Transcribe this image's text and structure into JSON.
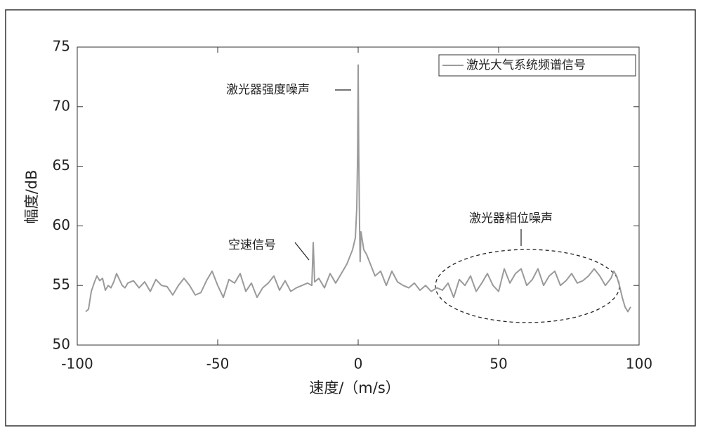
{
  "chart_data": {
    "type": "line",
    "xlabel": "速度/（m/s）",
    "ylabel": "幅度/dB",
    "xlim": [
      -100,
      100
    ],
    "xticks": [
      -100,
      -50,
      0,
      50,
      100
    ],
    "ylim": [
      50,
      75
    ],
    "yticks": [
      50,
      55,
      60,
      65,
      70,
      75
    ],
    "legend": "upper right",
    "annotations": [
      "激光器强度噪声",
      "空速信号",
      "激光器相位噪声"
    ],
    "x": [
      -97,
      -96,
      -95,
      -94,
      -93,
      -92,
      -91,
      -90,
      -89,
      -88,
      -87,
      -86,
      -85,
      -84,
      -83,
      -82,
      -80,
      -78,
      -76,
      -74,
      -72,
      -70,
      -68,
      -66,
      -64,
      -62,
      -60,
      -58,
      -56,
      -54,
      -52,
      -50,
      -48,
      -46,
      -44,
      -42,
      -40,
      -38,
      -36,
      -34,
      -32,
      -30,
      -28,
      -26,
      -24,
      -22,
      -20,
      -18,
      -16.5,
      -16,
      -15.5,
      -14,
      -12,
      -10,
      -8,
      -6,
      -4,
      -2,
      -1,
      -0.5,
      -0.2,
      0,
      0.2,
      0.5,
      0.7,
      1,
      2,
      3,
      4,
      6,
      8,
      10,
      12,
      14,
      16,
      18,
      20,
      22,
      24,
      26,
      28,
      30,
      32,
      34,
      36,
      38,
      40,
      42,
      44,
      46,
      48,
      50,
      52,
      54,
      56,
      58,
      60,
      62,
      64,
      66,
      68,
      70,
      72,
      74,
      76,
      78,
      80,
      82,
      84,
      86,
      88,
      90,
      91,
      92,
      93,
      94,
      95,
      96,
      97
    ],
    "series": [
      {
        "name": "激光大气系统频谱信号",
        "color": "#9a9a9a",
        "values": [
          52.8,
          53.0,
          54.5,
          55.2,
          55.8,
          55.4,
          55.6,
          54.6,
          55.0,
          54.8,
          55.3,
          56.0,
          55.5,
          55.0,
          54.8,
          55.2,
          55.4,
          54.8,
          55.3,
          54.5,
          55.5,
          55.0,
          54.9,
          54.2,
          55.0,
          55.6,
          55.0,
          54.2,
          54.4,
          55.4,
          56.2,
          55.0,
          54.0,
          55.5,
          55.2,
          56.0,
          54.5,
          55.2,
          54.0,
          54.8,
          55.2,
          55.8,
          54.6,
          55.4,
          54.5,
          54.8,
          55.0,
          55.2,
          55.0,
          58.6,
          55.3,
          55.6,
          54.8,
          56.0,
          55.2,
          56.0,
          56.8,
          58.0,
          59.0,
          61.5,
          66,
          73.5,
          66,
          60,
          57,
          59.5,
          58,
          57.6,
          57,
          55.8,
          56.2,
          55.0,
          56.2,
          55.3,
          55.0,
          54.8,
          55.2,
          54.6,
          55.0,
          54.5,
          54.8,
          54.6,
          55.2,
          54.0,
          55.5,
          55.0,
          55.8,
          54.5,
          55.2,
          56.0,
          55.0,
          54.5,
          56.4,
          55.2,
          56.0,
          56.4,
          55.0,
          55.5,
          56.4,
          55.0,
          55.8,
          56.2,
          55.0,
          55.4,
          56.0,
          55.2,
          55.4,
          55.8,
          56.4,
          55.8,
          55.0,
          55.6,
          56.2,
          55.8,
          55.0,
          54.0,
          53.2,
          52.8,
          53.2
        ]
      }
    ]
  }
}
